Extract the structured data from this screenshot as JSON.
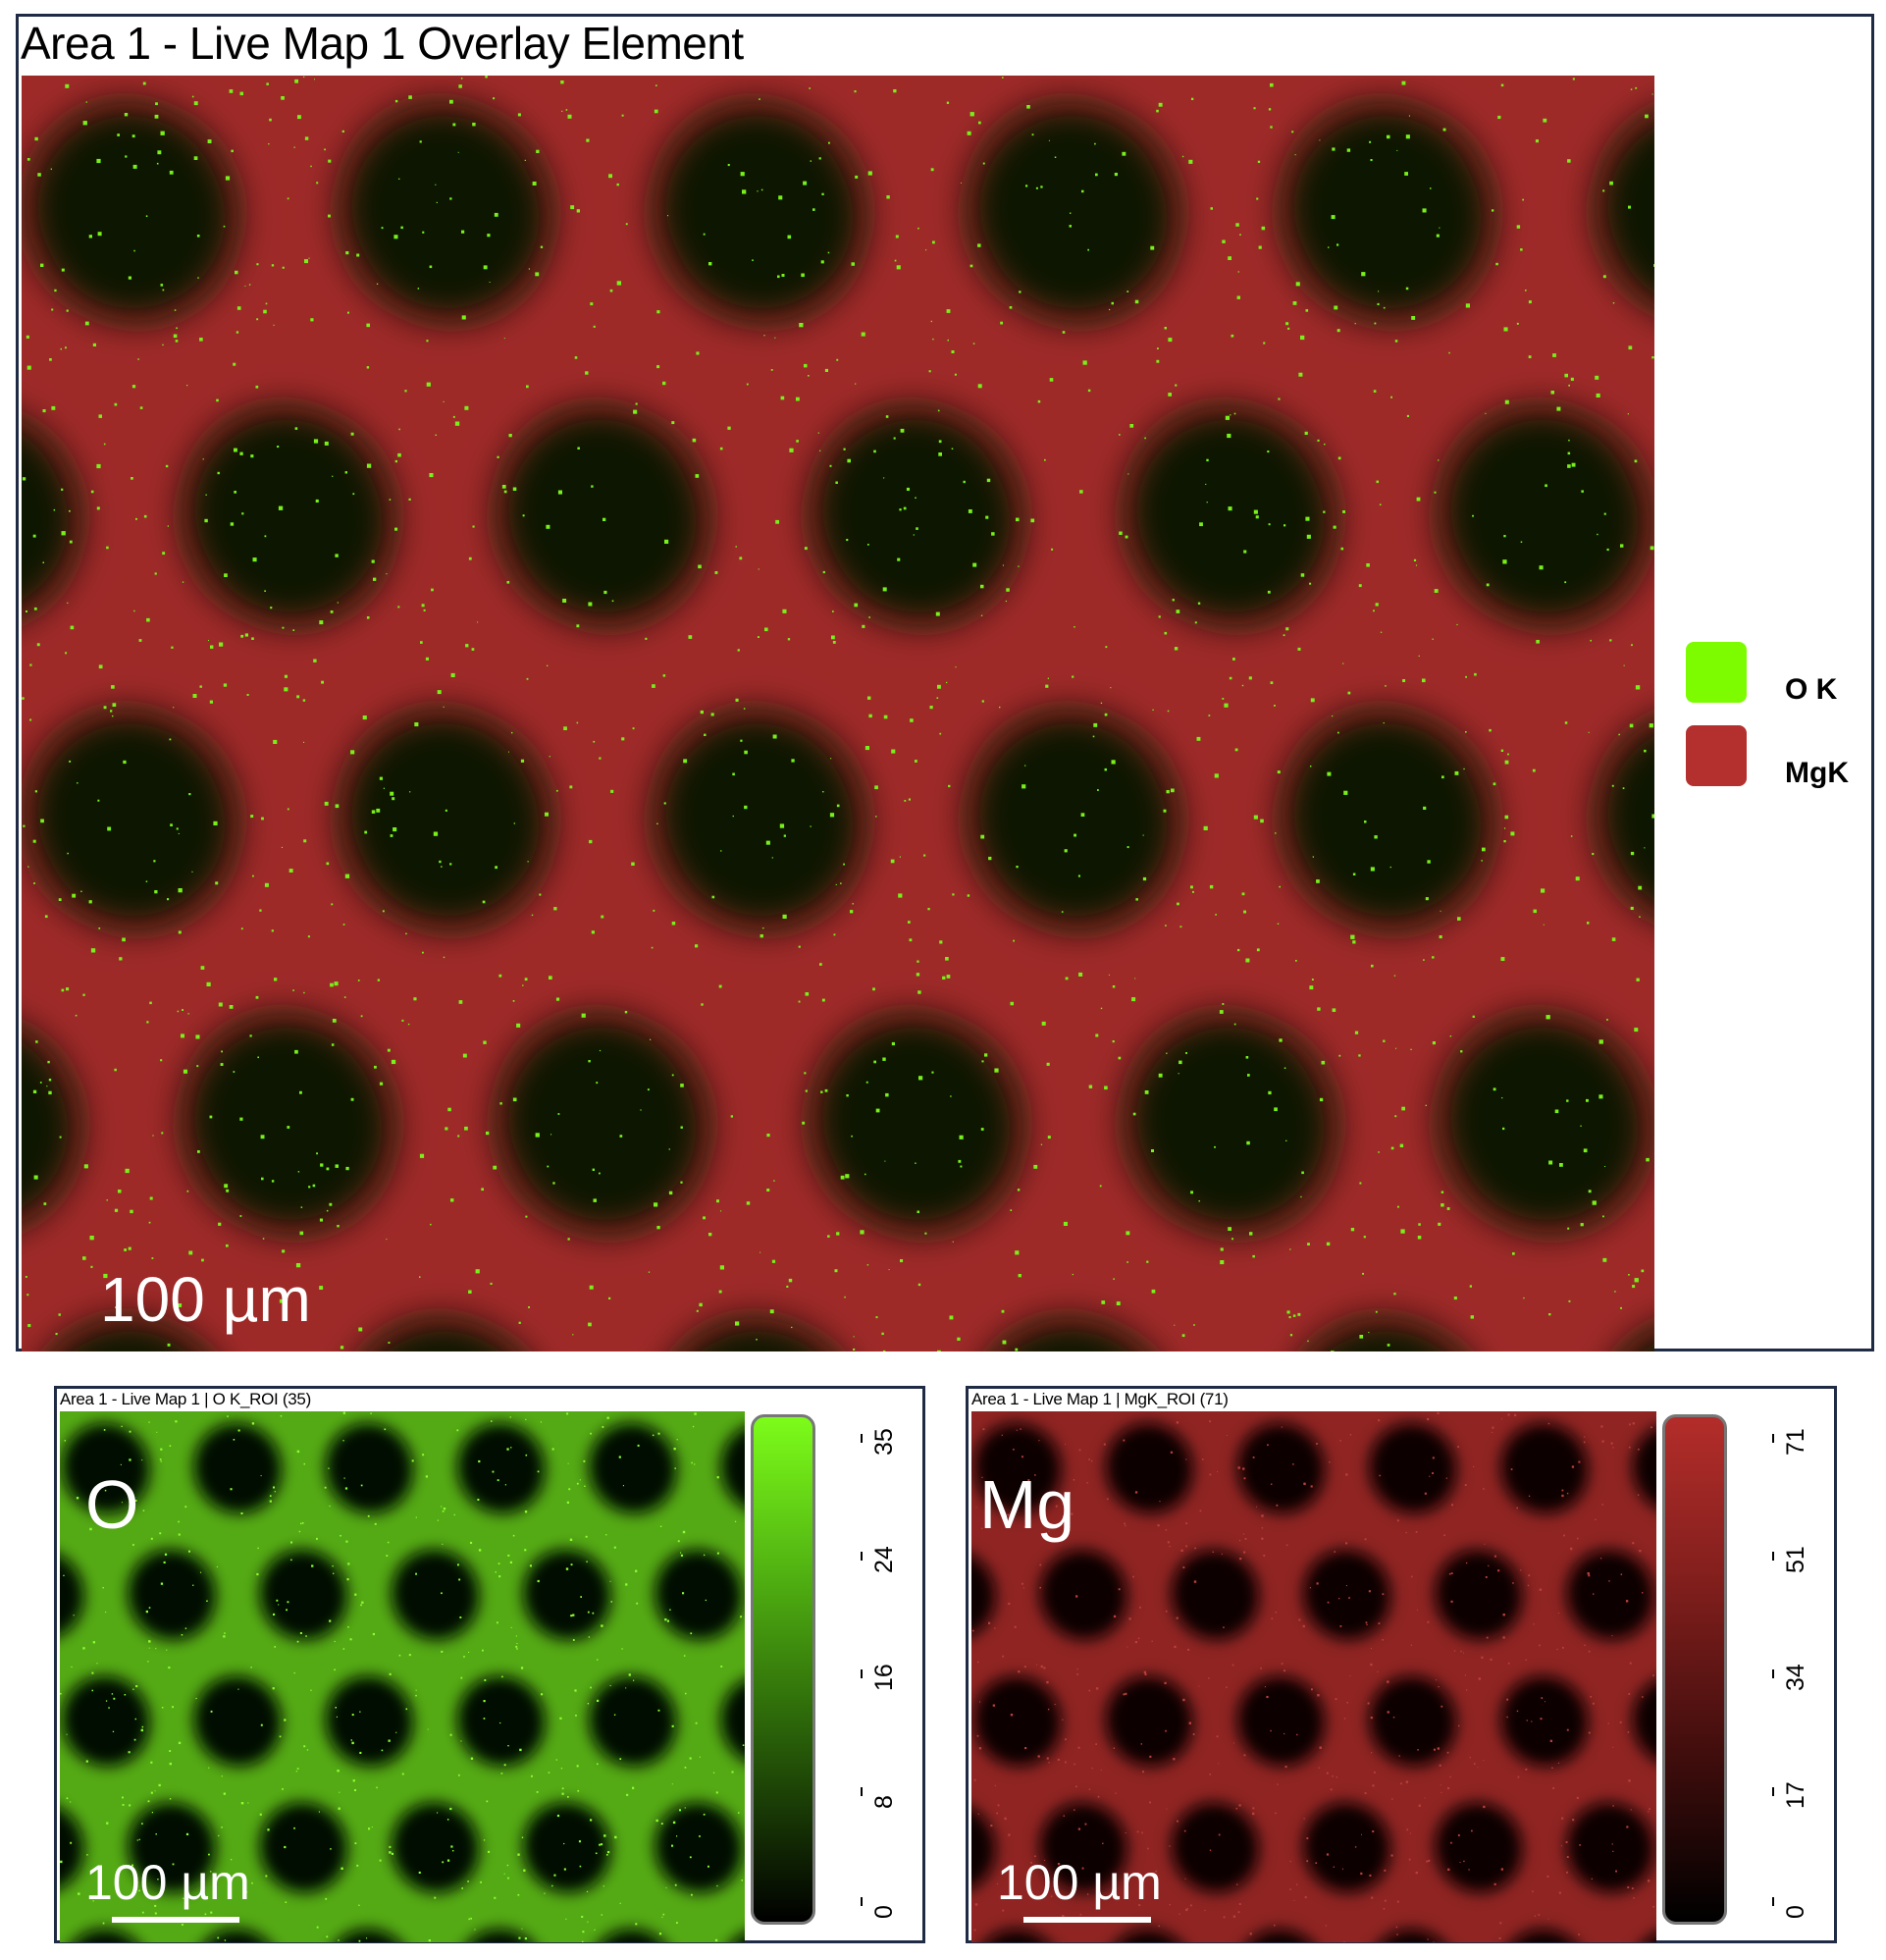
{
  "overlay": {
    "title": "Area 1 - Live Map 1 Overlay Element",
    "scale_label": "100 µm",
    "legend": [
      {
        "label": "O K",
        "color": "#7dfc00"
      },
      {
        "label": "MgK",
        "color": "#b3302e"
      }
    ]
  },
  "maps": [
    {
      "title": "Area 1 - Live Map 1 | O K_ROI (35)",
      "element": "O",
      "scale_label": "100 µm",
      "color": "#6fe21a",
      "colorbar_ticks": [
        "35",
        "24",
        "16",
        "8",
        "0"
      ]
    },
    {
      "title": "Area 1 - Live Map 1 | MgK_ROI (71)",
      "element": "Mg",
      "scale_label": "100 µm",
      "color": "#b3302e",
      "colorbar_ticks": [
        "71",
        "51",
        "34",
        "17",
        "0"
      ]
    }
  ]
}
